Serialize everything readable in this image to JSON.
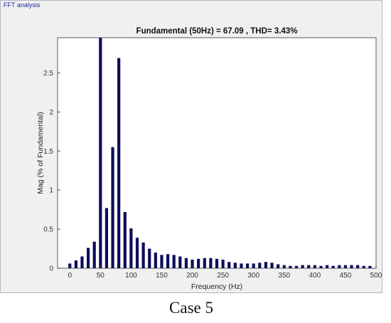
{
  "panel": {
    "label": "FFT analysis"
  },
  "caption": "Case 5",
  "colors": {
    "bar": "#0d0d5a",
    "axis": "#333333",
    "panel_bg": "#f0f0f0",
    "plot_bg": "#ffffff"
  },
  "chart_data": {
    "type": "bar",
    "title": "Fundamental (50Hz) = 67.09 , THD= 3.43%",
    "xlabel": "Frequency (Hz)",
    "ylabel": "Mag (% of Fundamental)",
    "xlim": [
      -20,
      500
    ],
    "ylim": [
      0,
      2.95
    ],
    "xticks": [
      0,
      50,
      100,
      150,
      200,
      250,
      300,
      350,
      400,
      450,
      500
    ],
    "yticks": [
      0,
      0.5,
      1,
      1.5,
      2,
      2.5
    ],
    "ytick_labels": [
      "0",
      "0.5",
      "1",
      "1.5",
      "2",
      "2.5"
    ],
    "grid": false,
    "x": [
      0,
      10,
      20,
      30,
      40,
      50,
      60,
      70,
      80,
      90,
      100,
      110,
      120,
      130,
      140,
      150,
      160,
      170,
      180,
      190,
      200,
      210,
      220,
      230,
      240,
      250,
      260,
      270,
      280,
      290,
      300,
      310,
      320,
      330,
      340,
      350,
      360,
      370,
      380,
      390,
      400,
      410,
      420,
      430,
      440,
      450,
      460,
      470,
      480,
      490
    ],
    "values": [
      0.06,
      0.1,
      0.15,
      0.26,
      0.34,
      2.95,
      0.77,
      1.55,
      2.69,
      0.72,
      0.51,
      0.39,
      0.33,
      0.25,
      0.2,
      0.17,
      0.18,
      0.17,
      0.15,
      0.13,
      0.11,
      0.12,
      0.13,
      0.13,
      0.12,
      0.11,
      0.08,
      0.07,
      0.06,
      0.06,
      0.06,
      0.07,
      0.08,
      0.07,
      0.05,
      0.04,
      0.03,
      0.03,
      0.04,
      0.04,
      0.04,
      0.03,
      0.04,
      0.03,
      0.04,
      0.04,
      0.04,
      0.04,
      0.03,
      0.03
    ]
  }
}
